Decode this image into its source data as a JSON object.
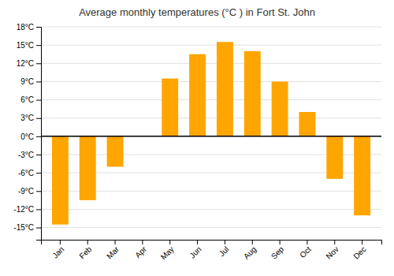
{
  "chart_data": {
    "type": "bar",
    "title": "Average monthly temperatures (°C ) in Fort St. John",
    "categories": [
      "Jan",
      "Feb",
      "Mar",
      "Apr",
      "May",
      "Jun",
      "Jul",
      "Aug",
      "Sep",
      "Oct",
      "Nov",
      "Dec"
    ],
    "values": [
      -14.5,
      -10.5,
      -5.0,
      0.0,
      9.5,
      13.5,
      15.5,
      14.0,
      9.0,
      4.0,
      -7.0,
      -13.0
    ],
    "color": "#FFA500",
    "ylim": [
      -17,
      18
    ],
    "yticks": [
      {
        "value": -15,
        "label": "-15°C"
      },
      {
        "value": -12,
        "label": "-12°C"
      },
      {
        "value": -9,
        "label": "-9°C"
      },
      {
        "value": -6,
        "label": "-6°C"
      },
      {
        "value": -3,
        "label": "-3°C"
      },
      {
        "value": 0,
        "label": "0°C"
      },
      {
        "value": 3,
        "label": "3°C"
      },
      {
        "value": 6,
        "label": "6°C"
      },
      {
        "value": 9,
        "label": "9°C"
      },
      {
        "value": 12,
        "label": "12°C"
      },
      {
        "value": 15,
        "label": "15°C"
      },
      {
        "value": 18,
        "label": "18°C"
      }
    ],
    "grid": true
  }
}
